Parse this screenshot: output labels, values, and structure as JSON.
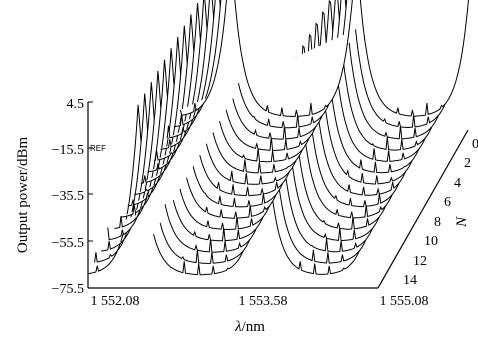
{
  "chart_data": {
    "type": "line",
    "title": "",
    "xlabel_prefix": "λ",
    "xlabel_unit": "/nm",
    "ylabel": "Output power/dBm",
    "zlabel": "N",
    "ref_marker": "REF",
    "ylim": [
      -75.5,
      4.5
    ],
    "xlim": [
      1552.08,
      1555.08
    ],
    "x_ticks": [
      "1 552.08",
      "1 553.58",
      "1 555.08"
    ],
    "y_ticks": [
      "4.5",
      "−15.5",
      "−35.5",
      "−55.5",
      "−75.5"
    ],
    "z_ticks": [
      "0",
      "2",
      "4",
      "6",
      "8",
      "10",
      "12",
      "14"
    ],
    "n_traces": [
      0,
      1,
      2,
      3,
      4,
      5,
      6,
      7,
      8,
      9,
      10,
      11,
      12,
      13,
      14
    ],
    "peaks": [
      {
        "wavelength": 1552.6,
        "power": 4.5
      },
      {
        "wavelength": 1553.9,
        "power": 3.5
      },
      {
        "wavelength": 1555.1,
        "power": 2.5
      }
    ],
    "noise_floor": -70
  }
}
